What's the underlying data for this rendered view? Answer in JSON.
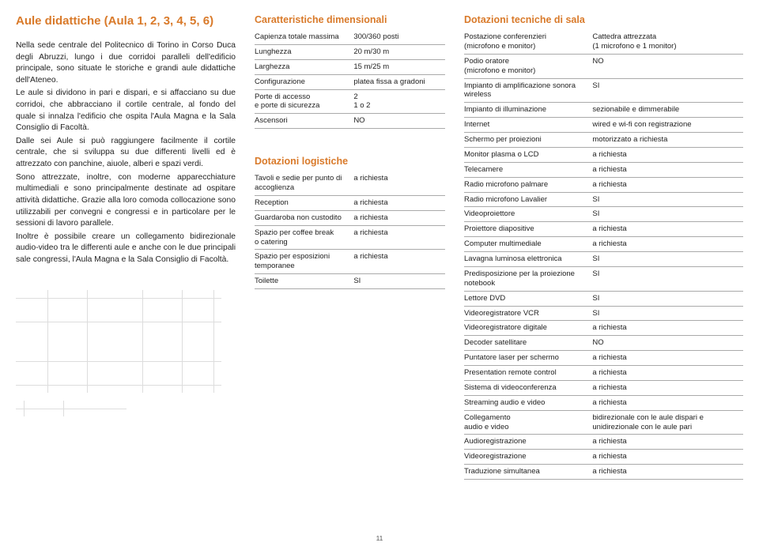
{
  "title": "Aule didattiche (Aula 1, 2, 3, 4, 5, 6)",
  "body_paragraphs": [
    "Nella sede centrale del Politecnico di Torino in Corso Duca degli Abruzzi, lungo i due corridoi paralleli dell'edificio principale, sono situate le storiche e grandi aule didattiche dell'Ateneo.",
    "Le aule si dividono in pari e dispari, e si affacciano su due corridoi, che abbracciano il cortile centrale, al fondo del quale si innalza l'edificio che ospita l'Aula Magna e la Sala Consiglio di Facoltà.",
    "Dalle sei Aule si può raggiungere facilmente il cortile centrale, che si sviluppa su due differenti livelli ed è attrezzato con panchine, aiuole, alberi e spazi verdi.",
    "Sono attrezzate, inoltre, con moderne apparecchiature multimediali e sono principalmente destinate ad ospitare attività didattiche. Grazie alla loro comoda collocazione sono utilizzabili per convegni e congressi e in particolare per le sessioni di lavoro parallele.",
    "Inoltre è possibile creare un collegamento bidirezionale audio-video tra le differenti aule e anche con le due principali sale congressi, l'Aula Magna e la Sala Consiglio di Facoltà."
  ],
  "sections": {
    "dimensionali": {
      "heading": "Caratteristiche dimensionali",
      "rows": [
        [
          "Capienza totale massima",
          "300/360 posti"
        ],
        [
          "Lunghezza",
          "20 m/30 m"
        ],
        [
          "Larghezza",
          "15 m/25 m"
        ],
        [
          "Configurazione",
          "platea fissa a gradoni"
        ],
        [
          "Porte di accesso\ne porte di sicurezza",
          "2\n1 o 2"
        ],
        [
          "Ascensori",
          "NO"
        ]
      ]
    },
    "logistiche": {
      "heading": "Dotazioni logistiche",
      "rows": [
        [
          "Tavoli e sedie per punto di accoglienza",
          "a richiesta"
        ],
        [
          "Reception",
          "a richiesta"
        ],
        [
          "Guardaroba non custodito",
          "a richiesta"
        ],
        [
          "Spazio per coffee break\no catering",
          "a richiesta"
        ],
        [
          "Spazio per esposizioni temporanee",
          "a richiesta"
        ],
        [
          "Toilette",
          "SI"
        ]
      ]
    },
    "tecniche": {
      "heading": "Dotazioni tecniche di sala",
      "rows": [
        [
          "Postazione conferenzieri\n(microfono e monitor)",
          "Cattedra attrezzata\n(1 microfono e 1 monitor)"
        ],
        [
          "Podio oratore\n(microfono e monitor)",
          "NO"
        ],
        [
          "Impianto di amplificazione sonora wireless",
          "SI"
        ],
        [
          "Impianto di illuminazione",
          "sezionabile e dimmerabile"
        ],
        [
          "Internet",
          "wired e wi-fi con registrazione"
        ],
        [
          "Schermo per proiezioni",
          "motorizzato a richiesta"
        ],
        [
          "Monitor plasma o LCD",
          "a richiesta"
        ],
        [
          "Telecamere",
          "a richiesta"
        ],
        [
          "Radio microfono palmare",
          "a richiesta"
        ],
        [
          "Radio microfono Lavalier",
          "SI"
        ],
        [
          "Videoproiettore",
          "SI"
        ],
        [
          "Proiettore diapositive",
          "a richiesta"
        ],
        [
          "Computer multimediale",
          "a richiesta"
        ],
        [
          "Lavagna luminosa elettronica",
          "SI"
        ],
        [
          "Predisposizione per la proiezione notebook",
          "SI"
        ],
        [
          "Lettore DVD",
          "SI"
        ],
        [
          "Videoregistratore VCR",
          "SI"
        ],
        [
          "Videoregistratore digitale",
          "a richiesta"
        ],
        [
          "Decoder satellitare",
          "NO"
        ],
        [
          "Puntatore laser per schermo",
          "a richiesta"
        ],
        [
          "Presentation remote control",
          "a richiesta"
        ],
        [
          "Sistema di videoconferenza",
          "a richiesta"
        ],
        [
          "Streaming audio e video",
          "a richiesta"
        ],
        [
          "Collegamento\naudio e video",
          "bidirezionale con le aule dispari e unidirezionale con le aule pari"
        ],
        [
          "Audioregistrazione",
          "a richiesta"
        ],
        [
          "Videoregistrazione",
          "a richiesta"
        ],
        [
          "Traduzione simultanea",
          "a richiesta"
        ]
      ]
    }
  },
  "page_number": "11"
}
